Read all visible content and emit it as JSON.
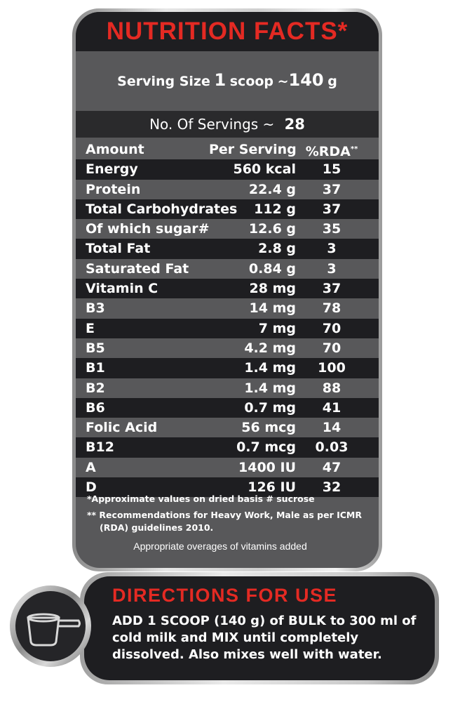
{
  "title": "NUTRITION FACTS*",
  "serving": {
    "label": "Serving Size",
    "qty": "1",
    "unit": "scoop",
    "approx": "~",
    "weight": "140",
    "weight_unit": "g"
  },
  "servings": {
    "label": "No. Of Servings ~",
    "value": "28"
  },
  "table": {
    "headers": {
      "amount": "Amount",
      "per_serving": "Per Serving",
      "rda": "%RDA",
      "rda_mark": "**"
    },
    "rows": [
      {
        "name": "Energy",
        "value": "560 kcal",
        "rda": "15"
      },
      {
        "name": "Protein",
        "value": "22.4  g",
        "rda": "37"
      },
      {
        "name": "Total Carbohydrates",
        "value": "112  g",
        "rda": "37"
      },
      {
        "name": "Of which sugar#",
        "value": "12.6  g",
        "rda": "35"
      },
      {
        "name": "Total Fat",
        "value": "2.8  g",
        "rda": "3"
      },
      {
        "name": "Saturated Fat",
        "value": "0.84  g",
        "rda": "3"
      },
      {
        "name": "Vitamin C",
        "value": "28 mg",
        "rda": "37"
      },
      {
        "name": "B3",
        "value": "14 mg",
        "rda": "78"
      },
      {
        "name": "E",
        "value": "7 mg",
        "rda": "70"
      },
      {
        "name": "B5",
        "value": "4.2 mg",
        "rda": "70"
      },
      {
        "name": "B1",
        "value": "1.4 mg",
        "rda": "100"
      },
      {
        "name": "B2",
        "value": "1.4 mg",
        "rda": "88"
      },
      {
        "name": "B6",
        "value": "0.7 mg",
        "rda": "41"
      },
      {
        "name": "Folic Acid",
        "value": "56 mcg",
        "rda": "14"
      },
      {
        "name": "B12",
        "value": "0.7 mcg",
        "rda": "0.03"
      },
      {
        "name": "A",
        "value": "1400 IU",
        "rda": "47"
      },
      {
        "name": "D",
        "value": "126  IU",
        "rda": "32"
      }
    ]
  },
  "notes": {
    "approx": "*Approximate values on dried basis # sucrose",
    "rda": "** Recommendations for Heavy Work, Male as per ICMR (RDA) guidelines 2010.",
    "overages": "Appropriate overages of vitamins added"
  },
  "directions": {
    "title": "DIRECTIONS FOR USE",
    "text": "ADD 1 SCOOP (140 g) of BULK to 300 ml of cold milk and MIX until completely dissolved. Also mixes well with water."
  },
  "icons": {
    "scoop": "measuring-scoop-icon"
  },
  "colors": {
    "title_red": "#e42a23",
    "dark_row": "#1e1e21",
    "light_row": "#58585a"
  }
}
